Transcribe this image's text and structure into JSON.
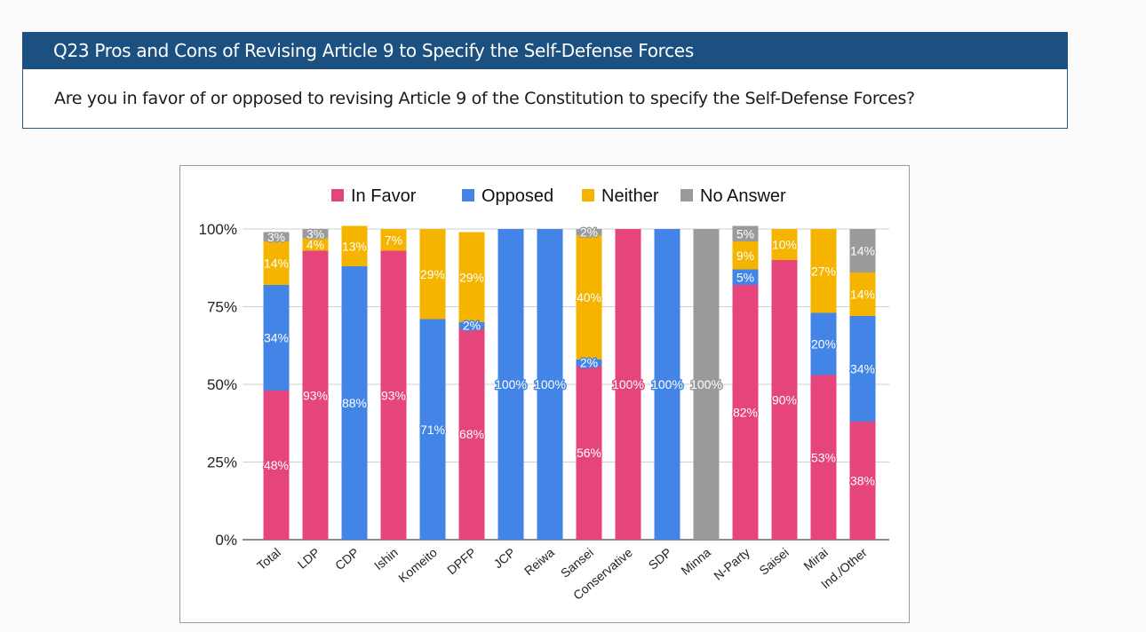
{
  "header": {
    "title": "Q23 Pros and Cons of Revising Article 9 to Specify the Self-Defense Forces",
    "question": "Are you in favor of or opposed to revising Article 9 of the Constitution to specify the Self-Defense Forces?"
  },
  "colors": {
    "header_bg": "#1b5081",
    "in_favor": "#e5457a",
    "opposed": "#4285e6",
    "neither": "#f5b400",
    "no_answer": "#9a9a9a"
  },
  "chart_data": {
    "type": "bar",
    "stacked": true,
    "title": "",
    "xlabel": "",
    "ylabel": "",
    "ylim": [
      0,
      100
    ],
    "yticks": [
      "0%",
      "25%",
      "50%",
      "75%",
      "100%"
    ],
    "ytick_values": [
      0,
      25,
      50,
      75,
      100
    ],
    "grid": true,
    "legend_position": "top-center",
    "categories": [
      "Total",
      "LDP",
      "CDP",
      "Ishin",
      "Komeito",
      "DPFP",
      "JCP",
      "Reiwa",
      "Sansei",
      "Conservative",
      "SDP",
      "Minna",
      "N-Party",
      "Saisei",
      "Mirai",
      "Ind./Other"
    ],
    "series": [
      {
        "name": "In Favor",
        "color": "#e5457a",
        "values": [
          48,
          93,
          0,
          93,
          0,
          68,
          0,
          0,
          56,
          100,
          0,
          0,
          82,
          90,
          53,
          38
        ]
      },
      {
        "name": "Opposed",
        "color": "#4285e6",
        "values": [
          34,
          0,
          88,
          0,
          71,
          2,
          100,
          100,
          2,
          0,
          100,
          0,
          5,
          0,
          20,
          34
        ]
      },
      {
        "name": "Neither",
        "color": "#f5b400",
        "values": [
          14,
          4,
          13,
          7,
          29,
          29,
          0,
          0,
          40,
          0,
          0,
          0,
          9,
          10,
          27,
          14
        ]
      },
      {
        "name": "No Answer",
        "color": "#9a9a9a",
        "values": [
          3,
          3,
          0,
          0,
          0,
          0,
          0,
          0,
          2,
          0,
          0,
          100,
          5,
          0,
          0,
          14
        ]
      }
    ]
  }
}
